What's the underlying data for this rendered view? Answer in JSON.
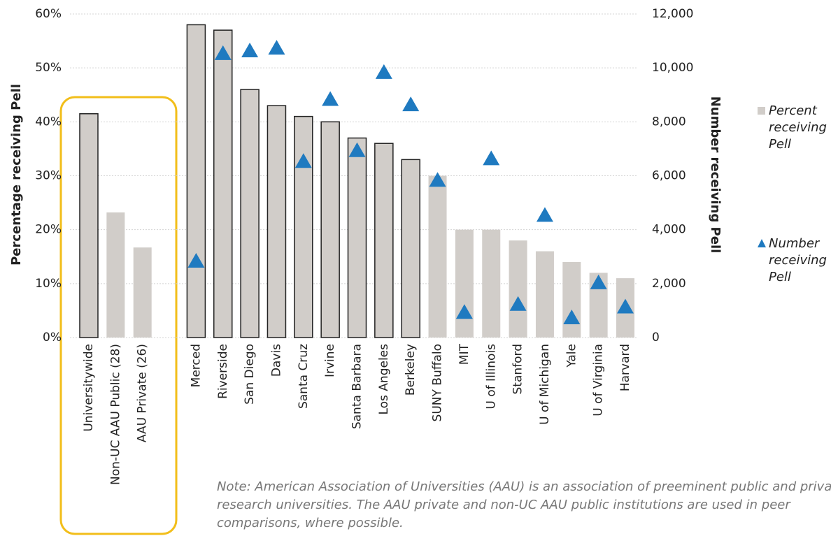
{
  "chart_data": {
    "type": "bar",
    "categories": [
      "Universitywide",
      "Non-UC AAU Public (28)",
      "AAU Private (26)",
      null,
      "Merced",
      "Riverside",
      "San Diego",
      "Davis",
      "Santa Cruz",
      "Irvine",
      "Santa Barbara",
      "Los Angeles",
      "Berkeley",
      "SUNY Buffalo",
      "MIT",
      "U of Illinois",
      "Stanford",
      "U of Michigan",
      "Yale",
      "U of Virginia",
      "Harvard"
    ],
    "series": [
      {
        "name": "Percent receiving Pell",
        "color": "#d1cdc9",
        "marker": "bar",
        "edgecolors": [
          "#222222",
          null,
          null,
          null,
          "#222222",
          "#222222",
          "#222222",
          "#222222",
          "#222222",
          "#222222",
          "#222222",
          "#222222",
          "#222222",
          null,
          null,
          null,
          null,
          null,
          null,
          null,
          null
        ],
        "values": [
          41.5,
          23.2,
          16.7,
          null,
          58,
          57,
          46,
          43,
          41,
          40,
          37,
          36,
          33,
          30,
          20,
          20,
          18,
          16,
          14,
          12,
          11
        ]
      },
      {
        "name": "Number receiving Pell",
        "color": "#1f7ac0",
        "marker": "triangle",
        "axis": "y2",
        "values": [
          null,
          null,
          null,
          null,
          2800,
          10500,
          10600,
          10700,
          6500,
          8800,
          6900,
          9800,
          8600,
          5800,
          900,
          6600,
          1200,
          4500,
          700,
          2000,
          1100
        ]
      }
    ],
    "ylabel": "Percentage receiving Pell",
    "y2label": "Number receiving Pell",
    "ylim": [
      0,
      60
    ],
    "yticks": [
      {
        "value": 0,
        "label": "0%"
      },
      {
        "value": 10,
        "label": "10%"
      },
      {
        "value": 20,
        "label": "20%"
      },
      {
        "value": 30,
        "label": "30%"
      },
      {
        "value": 40,
        "label": "40%"
      },
      {
        "value": 50,
        "label": "50%"
      },
      {
        "value": 60,
        "label": "60%"
      }
    ],
    "y2lim": [
      0,
      12000
    ],
    "y2ticks": [
      0,
      {
        "value": 2000,
        "label": "2,000"
      },
      {
        "value": 4000,
        "label": "4,000"
      },
      {
        "value": 6000,
        "label": "6,000"
      },
      {
        "value": 8000,
        "label": "8,000"
      },
      {
        "value": 10000,
        "label": "10,000"
      },
      {
        "value": 12000,
        "label": "12,000"
      }
    ],
    "grid": true,
    "legend": "right",
    "note": "Note: American Association of Universities (AAU) is an association of preeminent public and private research universities. The AAU private and non-UC AAU public institutions are used in peer comparisons, where possible."
  }
}
